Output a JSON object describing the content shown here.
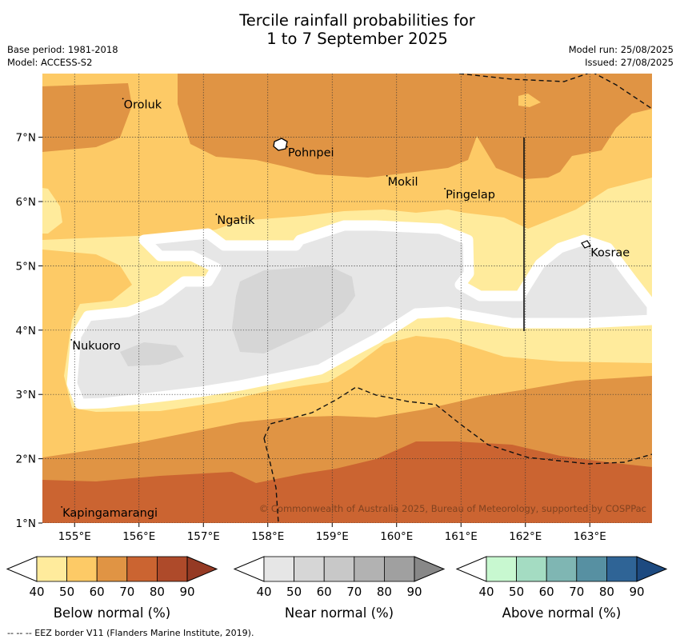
{
  "title_line1": "Tercile rainfall probabilities for",
  "title_line2": "1 to 7 September 2025",
  "meta": {
    "base_period": "Base period: 1981-2018",
    "model": "Model: ACCESS-S2",
    "model_run": "Model run: 25/08/2025",
    "issued": "Issued: 27/08/2025"
  },
  "map": {
    "lon_ticks": [
      "155°E",
      "156°E",
      "157°E",
      "158°E",
      "159°E",
      "160°E",
      "161°E",
      "162°E",
      "163°E"
    ],
    "lat_ticks": [
      "7°N",
      "6°N",
      "5°N",
      "4°N",
      "3°N",
      "2°N",
      "1°N"
    ],
    "places": [
      {
        "name": "Oroluk",
        "lon": 155.75,
        "lat": 7.6
      },
      {
        "name": "Pohnpei",
        "lon": 158.3,
        "lat": 6.85
      },
      {
        "name": "Mokil",
        "lon": 159.85,
        "lat": 6.4
      },
      {
        "name": "Pingelap",
        "lon": 160.75,
        "lat": 6.2
      },
      {
        "name": "Ngatik",
        "lon": 157.2,
        "lat": 5.8
      },
      {
        "name": "Kosrae",
        "lon": 163.0,
        "lat": 5.3
      },
      {
        "name": "Nukuoro",
        "lon": 154.95,
        "lat": 3.85
      },
      {
        "name": "Kapingamarangi",
        "lon": 154.8,
        "lat": 1.25
      }
    ],
    "credit": "© Commonwealth of Australia 2025, Bureau of Meteorology, supported by COSPPac",
    "category_colors": {
      "below_40": "#ffeb9c",
      "below_50": "#fdca66",
      "below_60": "#e09444",
      "below_70": "#cb6431",
      "near_40": "#e6e6e6",
      "near_50": "#d6d6d6"
    }
  },
  "colorbars": [
    {
      "label": "Below normal (%)",
      "ticks": [
        "40",
        "50",
        "60",
        "70",
        "80",
        "90"
      ],
      "colors": [
        "#ffeb9c",
        "#fdca66",
        "#e09444",
        "#cb6431",
        "#ae4a2a"
      ],
      "extend_color": "#953a24"
    },
    {
      "label": "Near normal (%)",
      "ticks": [
        "40",
        "50",
        "60",
        "70",
        "80",
        "90"
      ],
      "colors": [
        "#e6e6e6",
        "#d6d6d6",
        "#c8c8c8",
        "#b2b2b2",
        "#a0a0a0"
      ],
      "extend_color": "#888888"
    },
    {
      "label": "Above normal (%)",
      "ticks": [
        "40",
        "50",
        "60",
        "70",
        "80",
        "90"
      ],
      "colors": [
        "#c8f8d0",
        "#a4dcc2",
        "#7fb6b3",
        "#5790a2",
        "#2f6496"
      ],
      "extend_color": "#1d4a80"
    }
  ],
  "footnote": "--  --  -- EEZ border V11 (Flanders Marine Institute, 2019)."
}
